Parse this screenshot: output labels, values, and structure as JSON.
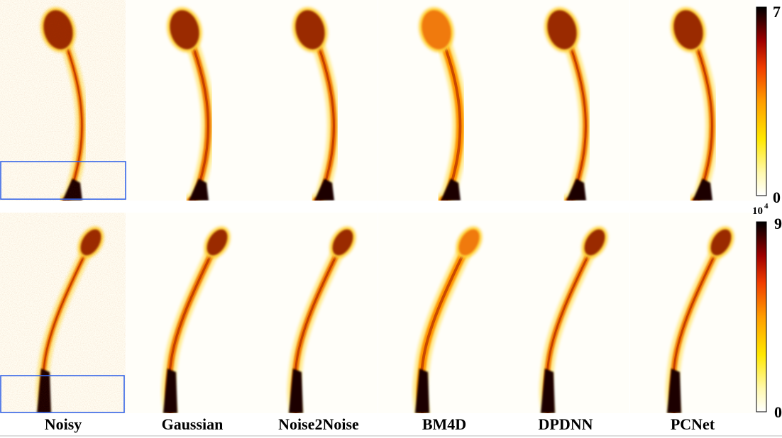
{
  "figure": {
    "columns": [
      {
        "label": "Noisy"
      },
      {
        "label": "Gaussian"
      },
      {
        "label": "Noise2Noise"
      },
      {
        "label": "BM4D"
      },
      {
        "label": "DPDNN"
      },
      {
        "label": "PCNet"
      }
    ],
    "rows": [
      {
        "name": "top-row",
        "colorbar": {
          "max_label": "7",
          "min_label": "0"
        }
      },
      {
        "name": "bottom-row",
        "colorbar": {
          "exponent_label": "10",
          "exponent_power": "4",
          "max_label": "9",
          "min_label": "0"
        }
      }
    ],
    "colormap": [
      "#ffffff",
      "#fff9b0",
      "#ffe800",
      "#ff9d00",
      "#f03c00",
      "#a00000",
      "#3a0000",
      "#000000"
    ],
    "highlight_box_color": "#3565e8"
  }
}
